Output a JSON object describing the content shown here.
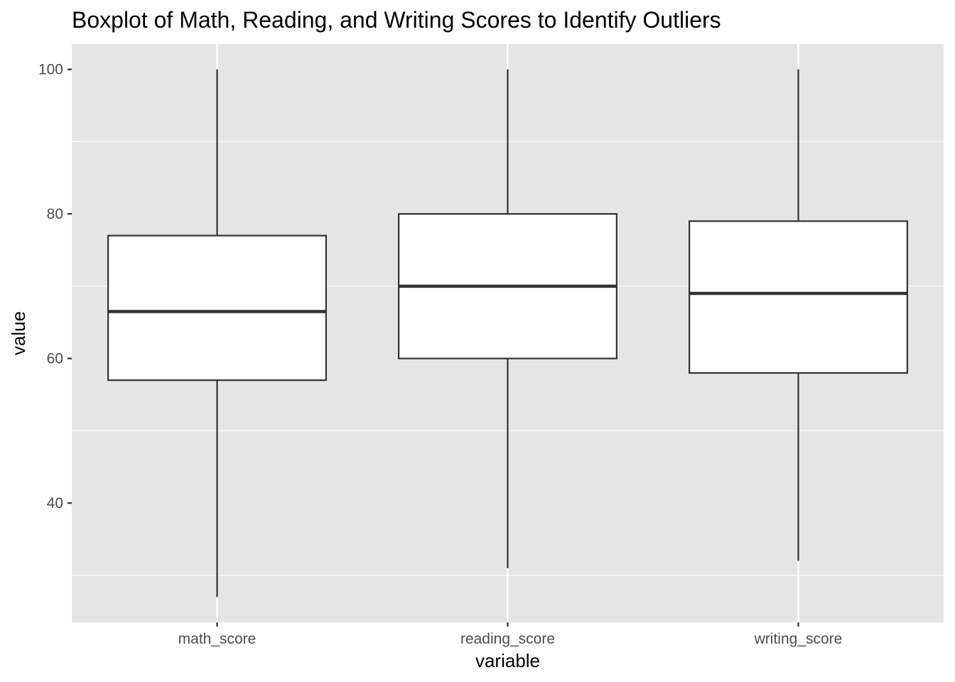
{
  "chart_data": {
    "type": "boxplot",
    "title": "Boxplot of Math, Reading, and Writing Scores to Identify Outliers",
    "xlabel": "variable",
    "ylabel": "value",
    "ylim": [
      23.5,
      103.5
    ],
    "yticks": [
      40,
      60,
      80,
      100
    ],
    "grid": true,
    "categories": [
      "math_score",
      "reading_score",
      "writing_score"
    ],
    "boxes": [
      {
        "category": "math_score",
        "min": 27,
        "q1": 57,
        "median": 66.5,
        "q3": 77,
        "max": 100
      },
      {
        "category": "reading_score",
        "min": 31,
        "q1": 60,
        "median": 70,
        "q3": 80,
        "max": 100
      },
      {
        "category": "writing_score",
        "min": 32,
        "q1": 58,
        "median": 69,
        "q3": 79,
        "max": 100
      }
    ],
    "colors": {
      "panel_background": "#e5e5e5",
      "grid": "#ffffff",
      "box_fill": "#ffffff",
      "box_line": "#333333",
      "tick_text": "#4d4d4d"
    }
  }
}
